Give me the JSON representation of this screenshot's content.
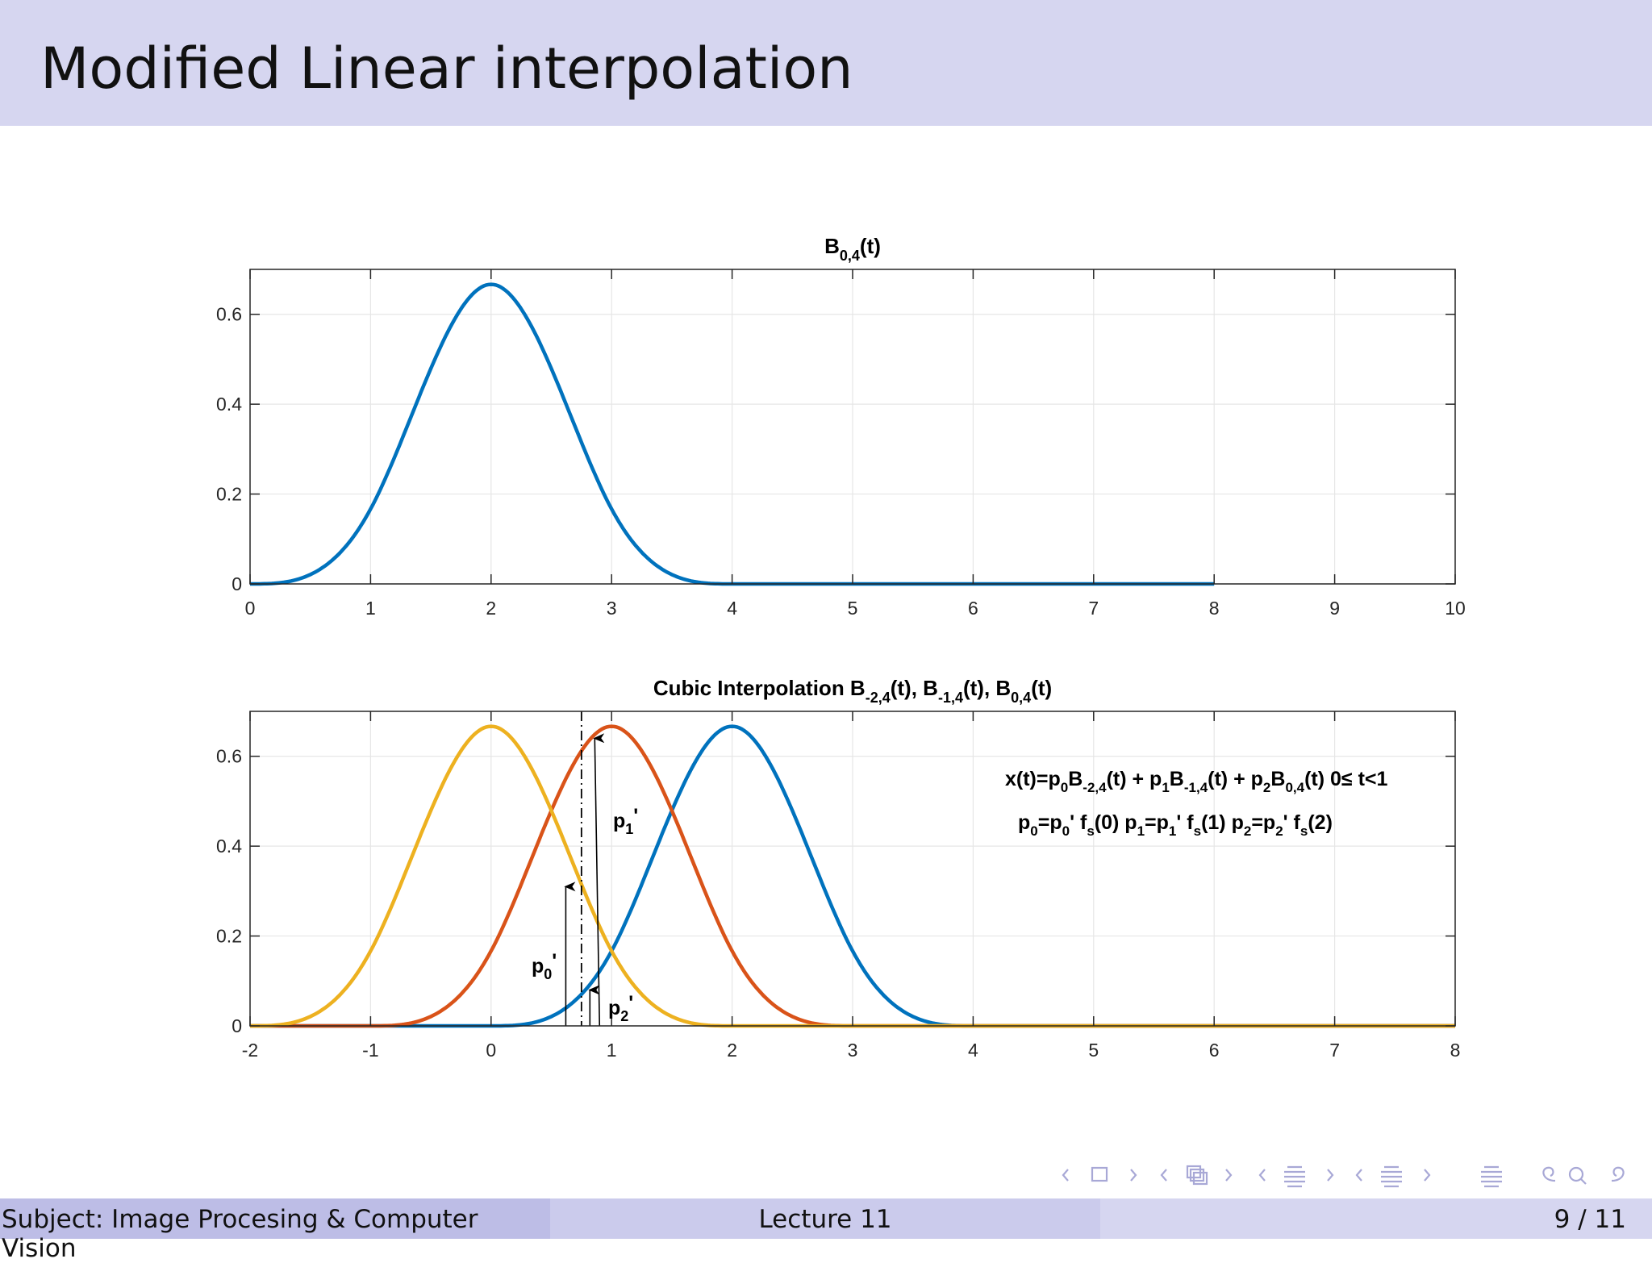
{
  "slide": {
    "title": "Modified Linear interpolation"
  },
  "footer": {
    "subject": "Subject: Image Procesing & Computer Vision",
    "lecture": "Lecture 11",
    "page": "9 / 11"
  },
  "navigation": {
    "icons": [
      "nav-prev-frame-icon",
      "nav-frame-icon",
      "nav-next-frame-icon",
      "nav-prev-section-icon",
      "nav-section-icon",
      "nav-next-section-icon",
      "nav-prev-subsection-icon",
      "nav-subsection-icon",
      "nav-next-subsection-icon",
      "nav-align-icon",
      "nav-search-icon"
    ]
  },
  "chart_data": [
    {
      "type": "line",
      "title": "B0,4(t)",
      "title_parts": {
        "base": "B",
        "sub": "0,4",
        "tail": "(t)"
      },
      "xlim": [
        0,
        10
      ],
      "ylim": [
        0,
        0.7
      ],
      "xticks": [
        "0",
        "1",
        "2",
        "3",
        "4",
        "5",
        "6",
        "7",
        "8",
        "9",
        "10"
      ],
      "yticks": [
        "0",
        "0.2",
        "0.4",
        "0.6"
      ],
      "grid": true,
      "series": [
        {
          "color": "#0072bd",
          "description": "cubic B-spline centered at t=2, support [0,4], zero until t=8",
          "x": [
            0,
            0.5,
            1,
            1.5,
            2,
            2.5,
            3,
            3.5,
            4,
            8
          ],
          "y": [
            0,
            0.0208,
            0.1667,
            0.4792,
            0.6667,
            0.4792,
            0.1667,
            0.0208,
            0,
            0
          ]
        }
      ]
    },
    {
      "type": "line",
      "title": "Cubic Interpolation B-2,4(t), B-1,4(t), B0,4(t)",
      "title_parts": {
        "prefix": "Cubic Interpolation ",
        "terms": [
          {
            "base": "B",
            "sub": "-2,4",
            "tail": "(t), "
          },
          {
            "base": "B",
            "sub": "-1,4",
            "tail": "(t), "
          },
          {
            "base": "B",
            "sub": "0,4",
            "tail": "(t)"
          }
        ]
      },
      "xlim": [
        -2,
        8
      ],
      "ylim": [
        0,
        0.7
      ],
      "xticks": [
        "-2",
        "-1",
        "0",
        "1",
        "2",
        "3",
        "4",
        "5",
        "6",
        "7",
        "8"
      ],
      "yticks": [
        "0",
        "0.2",
        "0.4",
        "0.6"
      ],
      "grid": true,
      "series": [
        {
          "color": "#edb120",
          "center": 0,
          "x": [
            -2,
            -1.5,
            -1,
            -0.5,
            0,
            0.5,
            1,
            1.5,
            2,
            8
          ],
          "y": [
            0,
            0.0208,
            0.1667,
            0.4792,
            0.6667,
            0.4792,
            0.1667,
            0.0208,
            0,
            0
          ]
        },
        {
          "color": "#d95319",
          "center": 1,
          "x": [
            -2,
            -1,
            -0.5,
            0,
            0.5,
            1,
            1.5,
            2,
            2.5,
            3,
            8
          ],
          "y": [
            0,
            0,
            0.0208,
            0.1667,
            0.4792,
            0.6667,
            0.4792,
            0.1667,
            0.0208,
            0,
            0
          ]
        },
        {
          "color": "#0072bd",
          "center": 2,
          "x": [
            -2,
            0,
            0.5,
            1,
            1.5,
            2,
            2.5,
            3,
            3.5,
            4,
            8
          ],
          "y": [
            0,
            0,
            0.0208,
            0.1667,
            0.4792,
            0.6667,
            0.4792,
            0.1667,
            0.0208,
            0,
            0
          ]
        }
      ],
      "dashdot_line_x": 0.75,
      "arrows": [
        {
          "name": "p0'",
          "x": 0.62,
          "y_to": 0.31
        },
        {
          "name": "p1'",
          "x": 0.9,
          "y_to": 0.64
        },
        {
          "name": "p2'",
          "x": 0.82,
          "y_to": 0.08
        }
      ],
      "labels": {
        "p0": {
          "base": "p",
          "sub": "0",
          "tail": "'"
        },
        "p1": {
          "base": "p",
          "sub": "1",
          "tail": "'"
        },
        "p2": {
          "base": "p",
          "sub": "2",
          "tail": "'"
        }
      },
      "annotations": {
        "line1": [
          "x(t)=p",
          "0",
          "B",
          "-2,4",
          "(t) + p",
          "1",
          "B",
          "-1,4",
          "(t) + p",
          "2",
          "B",
          "0,4",
          "(t) 0",
          "≤",
          " t<1"
        ],
        "line2": [
          "p",
          "0",
          "=p",
          "0",
          "' f",
          "s",
          "(0)  p",
          "1",
          "=p",
          "1",
          "' f",
          "s",
          "(1)  p",
          "2",
          "=p",
          "2",
          "' f",
          "s",
          "(2)"
        ]
      }
    }
  ]
}
